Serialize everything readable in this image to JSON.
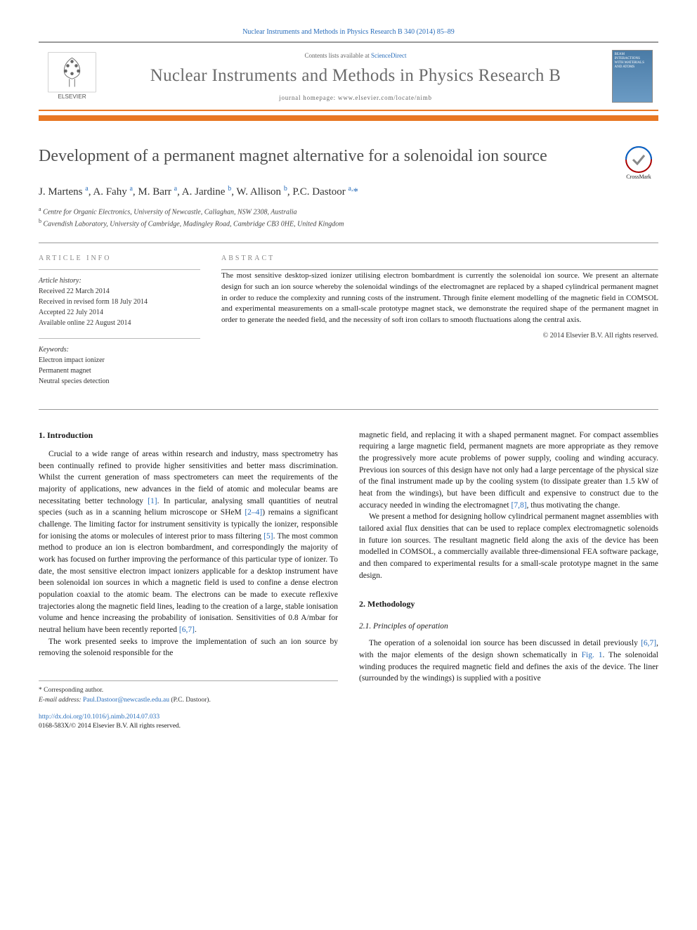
{
  "journal_ref": {
    "prefix": "Nuclear Instruments and Methods in Physics Research B 340 (2014) 85–89",
    "link_text": "Nuclear Instruments and Methods in Physics Research B 340 (2014) 85–89"
  },
  "header": {
    "contents_prefix": "Contents lists available at ",
    "contents_link": "ScienceDirect",
    "journal_name": "Nuclear Instruments and Methods in Physics Research B",
    "homepage_prefix": "journal homepage: ",
    "homepage_url": "www.elsevier.com/locate/nimb",
    "cover_text": "BEAM INTERACTIONS WITH MATERIALS AND ATOMS",
    "publisher": "ELSEVIER"
  },
  "title": "Development of a permanent magnet alternative for a solenoidal ion source",
  "crossmark_label": "CrossMark",
  "authors_html": "J. Martens <sup>a</sup>, A. Fahy <sup>a</sup>, M. Barr <sup>a</sup>, A. Jardine <sup>b</sup>, W. Allison <sup>b</sup>, P.C. Dastoor <sup>a,</sup><span class='star'>*</span>",
  "affiliations": [
    "Centre for Organic Electronics, University of Newcastle, Callaghan, NSW 2308, Australia",
    "Cavendish Laboratory, University of Cambridge, Madingley Road, Cambridge CB3 0HE, United Kingdom"
  ],
  "info": {
    "label": "ARTICLE INFO",
    "history_label": "Article history:",
    "history": [
      "Received 22 March 2014",
      "Received in revised form 18 July 2014",
      "Accepted 22 July 2014",
      "Available online 22 August 2014"
    ],
    "keywords_label": "Keywords:",
    "keywords": [
      "Electron impact ionizer",
      "Permanent magnet",
      "Neutral species detection"
    ]
  },
  "abstract": {
    "label": "ABSTRACT",
    "text": "The most sensitive desktop-sized ionizer utilising electron bombardment is currently the solenoidal ion source. We present an alternate design for such an ion source whereby the solenoidal windings of the electromagnet are replaced by a shaped cylindrical permanent magnet in order to reduce the complexity and running costs of the instrument. Through finite element modelling of the magnetic field in COMSOL and experimental measurements on a small-scale prototype magnet stack, we demonstrate the required shape of the permanent magnet in order to generate the needed field, and the necessity of soft iron collars to smooth fluctuations along the central axis.",
    "copyright": "© 2014 Elsevier B.V. All rights reserved."
  },
  "sections": {
    "intro_heading": "1. Introduction",
    "intro_p1": "Crucial to a wide range of areas within research and industry, mass spectrometry has been continually refined to provide higher sensitivities and better mass discrimination. Whilst the current generation of mass spectrometers can meet the requirements of the majority of applications, new advances in the field of atomic and molecular beams are necessitating better technology [1]. In particular, analysing small quantities of neutral species (such as in a scanning helium microscope or SHeM [2–4]) remains a significant challenge. The limiting factor for instrument sensitivity is typically the ionizer, responsible for ionising the atoms or molecules of interest prior to mass filtering [5]. The most common method to produce an ion is electron bombardment, and correspondingly the majority of work has focused on further improving the performance of this particular type of ionizer. To date, the most sensitive electron impact ionizers applicable for a desktop instrument have been solenoidal ion sources in which a magnetic field is used to confine a dense electron population coaxial to the atomic beam. The electrons can be made to execute reflexive trajectories along the magnetic field lines, leading to the creation of a large, stable ionisation volume and hence increasing the probability of ionisation. Sensitivities of 0.8 A/mbar for neutral helium have been recently reported [6,7].",
    "intro_p2": "The work presented seeks to improve the implementation of such an ion source by removing the solenoid responsible for the",
    "col2_p1": "magnetic field, and replacing it with a shaped permanent magnet. For compact assemblies requiring a large magnetic field, permanent magnets are more appropriate as they remove the progressively more acute problems of power supply, cooling and winding accuracy. Previous ion sources of this design have not only had a large percentage of the physical size of the final instrument made up by the cooling system (to dissipate greater than 1.5 kW of heat from the windings), but have been difficult and expensive to construct due to the accuracy needed in winding the electromagnet [7,8], thus motivating the change.",
    "col2_p2": "We present a method for designing hollow cylindrical permanent magnet assemblies with tailored axial flux densities that can be used to replace complex electromagnetic solenoids in future ion sources. The resultant magnetic field along the axis of the device has been modelled in COMSOL, a commercially available three-dimensional FEA software package, and then compared to experimental results for a small-scale prototype magnet in the same design.",
    "meth_heading": "2. Methodology",
    "meth_sub": "2.1. Principles of operation",
    "meth_p1": "The operation of a solenoidal ion source has been discussed in detail previously [6,7], with the major elements of the design shown schematically in Fig. 1. The solenoidal winding produces the required magnetic field and defines the axis of the device. The liner (surrounded by the windings) is supplied with a positive"
  },
  "footer": {
    "corr_marker": "* Corresponding author.",
    "email_label": "E-mail address: ",
    "email": "Paul.Dastoor@newcastle.edu.au",
    "email_suffix": " (P.C. Dastoor).",
    "doi_url": "http://dx.doi.org/10.1016/j.nimb.2014.07.033",
    "issn_line": "0168-583X/© 2014 Elsevier B.V. All rights reserved."
  },
  "colors": {
    "orange": "#e87722",
    "link": "#2a6ebb",
    "title_gray": "#505050",
    "header_gray": "#6b6b6b"
  }
}
